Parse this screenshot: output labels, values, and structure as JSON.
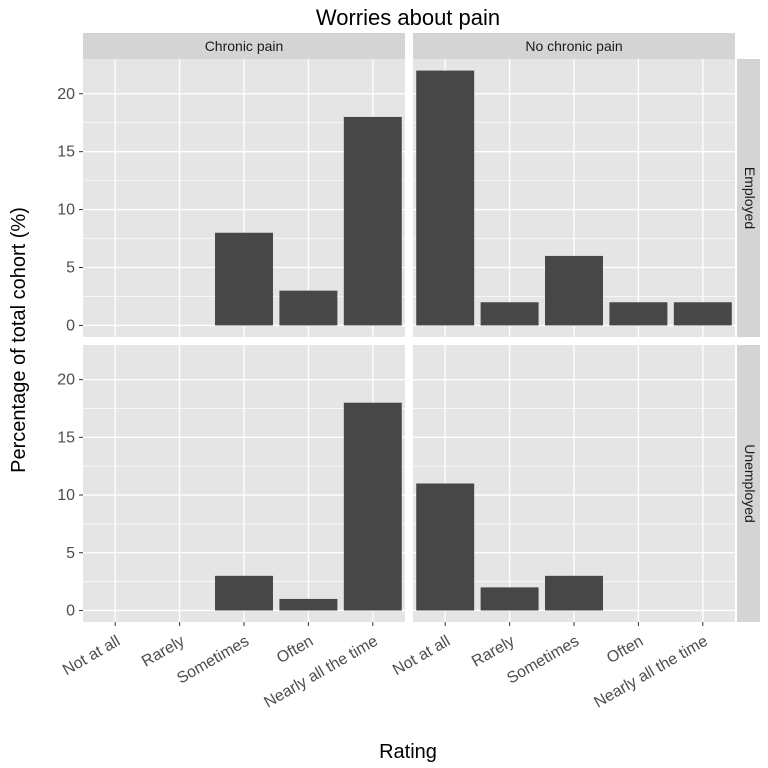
{
  "chart_data": {
    "type": "bar",
    "title": "Worries about pain",
    "xlabel": "Rating",
    "ylabel": "Percentage of total cohort (%)",
    "categories": [
      "Not at all",
      "Rarely",
      "Sometimes",
      "Often",
      "Nearly all the time"
    ],
    "ylim": [
      -1,
      23
    ],
    "yticks": [
      0,
      5,
      10,
      15,
      20
    ],
    "grid": true,
    "bar_color": "#474747",
    "panel_bg": "#e5e5e5",
    "strip_bg": "#d4d4d4",
    "grid_color": "#ffffff",
    "facet_cols": [
      "Chronic pain",
      "No chronic pain"
    ],
    "facet_rows": [
      "Employed",
      "Unemployed"
    ],
    "panels": [
      {
        "col": "Chronic pain",
        "row": "Employed",
        "values": [
          0,
          0,
          8,
          3,
          18
        ]
      },
      {
        "col": "No chronic pain",
        "row": "Employed",
        "values": [
          22,
          2,
          6,
          2,
          2
        ]
      },
      {
        "col": "Chronic pain",
        "row": "Unemployed",
        "values": [
          0,
          0,
          3,
          1,
          18
        ]
      },
      {
        "col": "No chronic pain",
        "row": "Unemployed",
        "values": [
          11,
          2,
          3,
          0,
          0
        ]
      }
    ]
  }
}
